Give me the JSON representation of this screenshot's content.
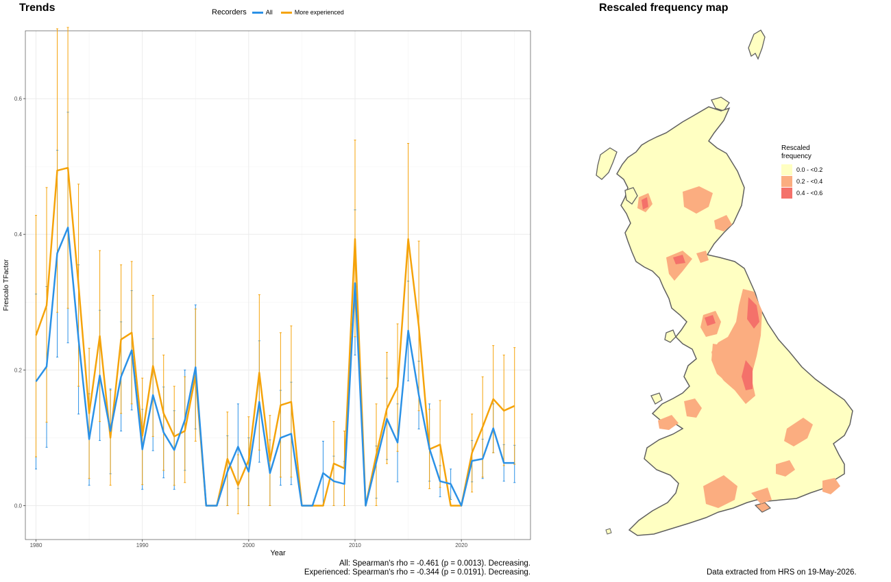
{
  "trends": {
    "title": "Trends",
    "legend_title": "Recorders",
    "stats": [
      "All: Spearman's rho = -0.461 (p = 0.0013). Decreasing.",
      "Experienced: Spearman's rho = -0.344 (p = 0.0191). Decreasing."
    ]
  },
  "map": {
    "title": "Rescaled frequency map",
    "legend_title": "Rescaled frequency",
    "legend": [
      {
        "label": "0.0 - <0.2",
        "color": "#FFFFC2"
      },
      {
        "label": "0.2 - <0.4",
        "color": "#FBAD80"
      },
      {
        "label": "0.4 - <0.6",
        "color": "#F4716A"
      }
    ],
    "outline_color": "#5F5F5F"
  },
  "footer": "Data extracted from HRS on 19-May-2026.",
  "chart_data": {
    "type": "line",
    "xlabel": "Year",
    "ylabel": "Frescalo TFactor",
    "xlim": [
      1979,
      2026.5
    ],
    "ylim": [
      -0.05,
      0.7
    ],
    "x_ticks": [
      1980,
      1990,
      2000,
      2010,
      2020
    ],
    "y_ticks": [
      0.0,
      0.2,
      0.4,
      0.6
    ],
    "y_tick_labels": [
      "0.0",
      "0.2",
      "0.4",
      "0.6"
    ],
    "grid": true,
    "legend_position": "top",
    "series": [
      {
        "name": "All",
        "color": "#2B91E6",
        "points": [
          {
            "x": 1980,
            "y": 0.183,
            "lo": 0.054,
            "hi": 0.312
          },
          {
            "x": 1981,
            "y": 0.205,
            "lo": 0.086,
            "hi": 0.323
          },
          {
            "x": 1982,
            "y": 0.372,
            "lo": 0.219,
            "hi": 0.524
          },
          {
            "x": 1983,
            "y": 0.41,
            "lo": 0.24,
            "hi": 0.58
          },
          {
            "x": 1984,
            "y": 0.245,
            "lo": 0.135,
            "hi": 0.355
          },
          {
            "x": 1985,
            "y": 0.098,
            "lo": 0.03,
            "hi": 0.165
          },
          {
            "x": 1986,
            "y": 0.192,
            "lo": 0.096,
            "hi": 0.288
          },
          {
            "x": 1987,
            "y": 0.11,
            "lo": 0.047,
            "hi": 0.172
          },
          {
            "x": 1988,
            "y": 0.19,
            "lo": 0.11,
            "hi": 0.271
          },
          {
            "x": 1989,
            "y": 0.229,
            "lo": 0.141,
            "hi": 0.317
          },
          {
            "x": 1990,
            "y": 0.083,
            "lo": 0.024,
            "hi": 0.142
          },
          {
            "x": 1991,
            "y": 0.163,
            "lo": 0.081,
            "hi": 0.246
          },
          {
            "x": 1992,
            "y": 0.108,
            "lo": 0.041,
            "hi": 0.175
          },
          {
            "x": 1993,
            "y": 0.082,
            "lo": 0.024,
            "hi": 0.14
          },
          {
            "x": 1994,
            "y": 0.126,
            "lo": 0.052,
            "hi": 0.2
          },
          {
            "x": 1995,
            "y": 0.204,
            "lo": 0.113,
            "hi": 0.296
          },
          {
            "x": 1996,
            "y": 0.0,
            "lo": 0.0,
            "hi": 0.0
          },
          {
            "x": 1997,
            "y": 0.0,
            "lo": 0.0,
            "hi": 0.0
          },
          {
            "x": 1998,
            "y": 0.05,
            "lo": 0.0,
            "hi": 0.103
          },
          {
            "x": 1999,
            "y": 0.087,
            "lo": 0.025,
            "hi": 0.15
          },
          {
            "x": 2000,
            "y": 0.05,
            "lo": 0.0,
            "hi": 0.1
          },
          {
            "x": 2001,
            "y": 0.153,
            "lo": 0.064,
            "hi": 0.243
          },
          {
            "x": 2002,
            "y": 0.048,
            "lo": 0.0,
            "hi": 0.097
          },
          {
            "x": 2003,
            "y": 0.1,
            "lo": 0.03,
            "hi": 0.17
          },
          {
            "x": 2004,
            "y": 0.106,
            "lo": 0.031,
            "hi": 0.182
          },
          {
            "x": 2005,
            "y": 0.0,
            "lo": 0.0,
            "hi": 0.0
          },
          {
            "x": 2006,
            "y": 0.0,
            "lo": 0.0,
            "hi": 0.0
          },
          {
            "x": 2007,
            "y": 0.048,
            "lo": 0.0,
            "hi": 0.095
          },
          {
            "x": 2008,
            "y": 0.036,
            "lo": 0.0,
            "hi": 0.073
          },
          {
            "x": 2009,
            "y": 0.032,
            "lo": 0.0,
            "hi": 0.065
          },
          {
            "x": 2010,
            "y": 0.328,
            "lo": 0.222,
            "hi": 0.436
          },
          {
            "x": 2011,
            "y": 0.0,
            "lo": 0.0,
            "hi": 0.0
          },
          {
            "x": 2012,
            "y": 0.064,
            "lo": 0.011,
            "hi": 0.088
          },
          {
            "x": 2013,
            "y": 0.128,
            "lo": 0.068,
            "hi": 0.188
          },
          {
            "x": 2014,
            "y": 0.093,
            "lo": 0.035,
            "hi": 0.15
          },
          {
            "x": 2015,
            "y": 0.258,
            "lo": 0.184,
            "hi": 0.331
          },
          {
            "x": 2016,
            "y": 0.163,
            "lo": 0.113,
            "hi": 0.213
          },
          {
            "x": 2017,
            "y": 0.084,
            "lo": 0.036,
            "hi": 0.15
          },
          {
            "x": 2018,
            "y": 0.036,
            "lo": 0.013,
            "hi": 0.059
          },
          {
            "x": 2019,
            "y": 0.032,
            "lo": 0.009,
            "hi": 0.054
          },
          {
            "x": 2020,
            "y": 0.0,
            "lo": 0.0,
            "hi": 0.0
          },
          {
            "x": 2021,
            "y": 0.066,
            "lo": 0.035,
            "hi": 0.096
          },
          {
            "x": 2022,
            "y": 0.069,
            "lo": 0.04,
            "hi": 0.098
          },
          {
            "x": 2023,
            "y": 0.114,
            "lo": 0.078,
            "hi": 0.15
          },
          {
            "x": 2024,
            "y": 0.063,
            "lo": 0.036,
            "hi": 0.09
          },
          {
            "x": 2025,
            "y": 0.063,
            "lo": 0.034,
            "hi": 0.089
          }
        ]
      },
      {
        "name": "More experienced",
        "color": "#F5A30A",
        "points": [
          {
            "x": 1980,
            "y": 0.251,
            "lo": 0.072,
            "hi": 0.428
          },
          {
            "x": 1981,
            "y": 0.295,
            "lo": 0.123,
            "hi": 0.469
          },
          {
            "x": 1982,
            "y": 0.494,
            "lo": 0.285,
            "hi": 0.703
          },
          {
            "x": 1983,
            "y": 0.498,
            "lo": 0.291,
            "hi": 0.705
          },
          {
            "x": 1984,
            "y": 0.325,
            "lo": 0.176,
            "hi": 0.474
          },
          {
            "x": 1985,
            "y": 0.136,
            "lo": 0.04,
            "hi": 0.232
          },
          {
            "x": 1986,
            "y": 0.25,
            "lo": 0.124,
            "hi": 0.376
          },
          {
            "x": 1987,
            "y": 0.1,
            "lo": 0.03,
            "hi": 0.17
          },
          {
            "x": 1988,
            "y": 0.245,
            "lo": 0.136,
            "hi": 0.355
          },
          {
            "x": 1989,
            "y": 0.255,
            "lo": 0.15,
            "hi": 0.36
          },
          {
            "x": 1990,
            "y": 0.103,
            "lo": 0.031,
            "hi": 0.188
          },
          {
            "x": 1991,
            "y": 0.206,
            "lo": 0.102,
            "hi": 0.31
          },
          {
            "x": 1992,
            "y": 0.136,
            "lo": 0.052,
            "hi": 0.222
          },
          {
            "x": 1993,
            "y": 0.102,
            "lo": 0.03,
            "hi": 0.176
          },
          {
            "x": 1994,
            "y": 0.11,
            "lo": 0.034,
            "hi": 0.19
          },
          {
            "x": 1995,
            "y": 0.192,
            "lo": 0.095,
            "hi": 0.29
          },
          {
            "x": 1996,
            "y": 0.0,
            "lo": 0.0,
            "hi": 0.0
          },
          {
            "x": 1997,
            "y": 0.0,
            "lo": 0.0,
            "hi": 0.0
          },
          {
            "x": 1998,
            "y": 0.069,
            "lo": 0.0,
            "hi": 0.138
          },
          {
            "x": 1999,
            "y": 0.03,
            "lo": -0.012,
            "hi": 0.075
          },
          {
            "x": 2000,
            "y": 0.067,
            "lo": 0.0,
            "hi": 0.131
          },
          {
            "x": 2001,
            "y": 0.196,
            "lo": 0.082,
            "hi": 0.311
          },
          {
            "x": 2002,
            "y": 0.066,
            "lo": 0.0,
            "hi": 0.133
          },
          {
            "x": 2003,
            "y": 0.148,
            "lo": 0.042,
            "hi": 0.255
          },
          {
            "x": 2004,
            "y": 0.153,
            "lo": 0.042,
            "hi": 0.265
          },
          {
            "x": 2005,
            "y": 0.0,
            "lo": 0.0,
            "hi": 0.0
          },
          {
            "x": 2006,
            "y": 0.0,
            "lo": 0.0,
            "hi": 0.0
          },
          {
            "x": 2007,
            "y": 0.0,
            "lo": 0.0,
            "hi": 0.0
          },
          {
            "x": 2008,
            "y": 0.062,
            "lo": 0.0,
            "hi": 0.124
          },
          {
            "x": 2009,
            "y": 0.055,
            "lo": 0.0,
            "hi": 0.11
          },
          {
            "x": 2010,
            "y": 0.393,
            "lo": 0.249,
            "hi": 0.539
          },
          {
            "x": 2011,
            "y": 0.0,
            "lo": 0.0,
            "hi": 0.0
          },
          {
            "x": 2012,
            "y": 0.075,
            "lo": 0.0,
            "hi": 0.15
          },
          {
            "x": 2013,
            "y": 0.143,
            "lo": 0.062,
            "hi": 0.226
          },
          {
            "x": 2014,
            "y": 0.175,
            "lo": 0.08,
            "hi": 0.268
          },
          {
            "x": 2015,
            "y": 0.393,
            "lo": 0.252,
            "hi": 0.534
          },
          {
            "x": 2016,
            "y": 0.264,
            "lo": 0.14,
            "hi": 0.39
          },
          {
            "x": 2017,
            "y": 0.083,
            "lo": 0.025,
            "hi": 0.142
          },
          {
            "x": 2018,
            "y": 0.09,
            "lo": 0.027,
            "hi": 0.155
          },
          {
            "x": 2019,
            "y": 0.0,
            "lo": 0.0,
            "hi": 0.0
          },
          {
            "x": 2020,
            "y": 0.0,
            "lo": 0.0,
            "hi": 0.0
          },
          {
            "x": 2021,
            "y": 0.078,
            "lo": 0.02,
            "hi": 0.135
          },
          {
            "x": 2022,
            "y": 0.116,
            "lo": 0.042,
            "hi": 0.19
          },
          {
            "x": 2023,
            "y": 0.157,
            "lo": 0.078,
            "hi": 0.236
          },
          {
            "x": 2024,
            "y": 0.14,
            "lo": 0.059,
            "hi": 0.222
          },
          {
            "x": 2025,
            "y": 0.147,
            "lo": 0.061,
            "hi": 0.233
          }
        ]
      }
    ]
  }
}
